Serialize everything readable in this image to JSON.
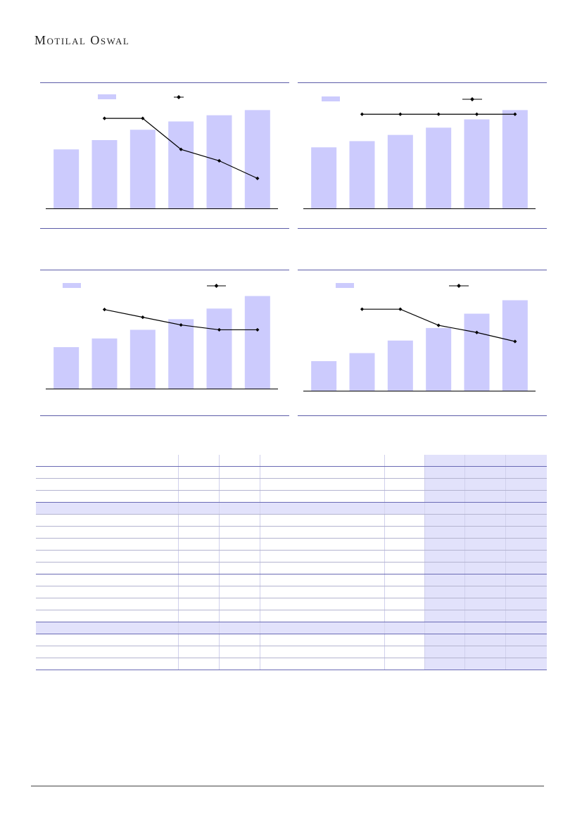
{
  "header": {
    "brand": "Motilal Oswal"
  },
  "theme": {
    "bar_color": "#cccbfd",
    "line_color": "#000000",
    "rule_color": "#5c5ca8",
    "table_shade": "#e2e2fb"
  },
  "chart_data": [
    {
      "type": "bar",
      "title": "",
      "categories": [
        "",
        "",
        "",
        "",
        "",
        ""
      ],
      "series": [
        {
          "kind": "bar",
          "values": [
            57,
            66,
            76,
            84,
            90,
            95
          ]
        },
        {
          "kind": "line",
          "values": [
            null,
            87,
            87,
            57,
            46,
            29
          ]
        }
      ],
      "ylim": [
        0,
        100
      ],
      "grid": false,
      "legend": "top"
    },
    {
      "type": "bar",
      "title": "",
      "categories": [
        "",
        "",
        "",
        "",
        "",
        ""
      ],
      "series": [
        {
          "kind": "bar",
          "values": [
            59,
            65,
            71,
            78,
            86,
            95
          ]
        },
        {
          "kind": "line",
          "values": [
            null,
            91,
            91,
            91,
            91,
            91
          ]
        }
      ],
      "ylim": [
        0,
        100
      ],
      "grid": false,
      "legend": "top"
    },
    {
      "type": "bar",
      "title": "",
      "categories": [
        "",
        "",
        "",
        "",
        "",
        ""
      ],
      "series": [
        {
          "kind": "bar",
          "values": [
            43,
            52,
            61,
            72,
            83,
            96
          ]
        },
        {
          "kind": "line",
          "values": [
            null,
            82,
            74,
            66,
            61,
            61
          ]
        }
      ],
      "ylim": [
        0,
        100
      ],
      "grid": false,
      "legend": "top"
    },
    {
      "type": "bar",
      "title": "",
      "categories": [
        "",
        "",
        "",
        "",
        "",
        ""
      ],
      "series": [
        {
          "kind": "bar",
          "values": [
            33,
            42,
            56,
            70,
            86,
            101
          ]
        },
        {
          "kind": "line",
          "values": [
            null,
            91,
            91,
            73,
            65,
            55
          ]
        }
      ],
      "ylim": [
        0,
        110
      ],
      "grid": false,
      "legend": "top"
    }
  ],
  "table": {
    "rows": [
      {
        "h": 17,
        "hl": false,
        "strong": true
      },
      {
        "h": 17,
        "hl": false,
        "strong": false
      },
      {
        "h": 17,
        "hl": false,
        "strong": false
      },
      {
        "h": 17,
        "hl": false,
        "strong": true
      },
      {
        "h": 17,
        "hl": true,
        "strong": false
      },
      {
        "h": 17,
        "hl": false,
        "strong": false
      },
      {
        "h": 17,
        "hl": false,
        "strong": false
      },
      {
        "h": 17,
        "hl": false,
        "strong": false
      },
      {
        "h": 17,
        "hl": false,
        "strong": false
      },
      {
        "h": 17,
        "hl": false,
        "strong": true
      },
      {
        "h": 17,
        "hl": false,
        "strong": false
      },
      {
        "h": 17,
        "hl": false,
        "strong": false
      },
      {
        "h": 17,
        "hl": false,
        "strong": false
      },
      {
        "h": 17,
        "hl": false,
        "strong": true
      },
      {
        "h": 17,
        "hl": true,
        "strong": true
      },
      {
        "h": 17,
        "hl": false,
        "strong": false
      },
      {
        "h": 17,
        "hl": false,
        "strong": false
      },
      {
        "h": 17,
        "hl": false,
        "strong": true
      }
    ]
  }
}
